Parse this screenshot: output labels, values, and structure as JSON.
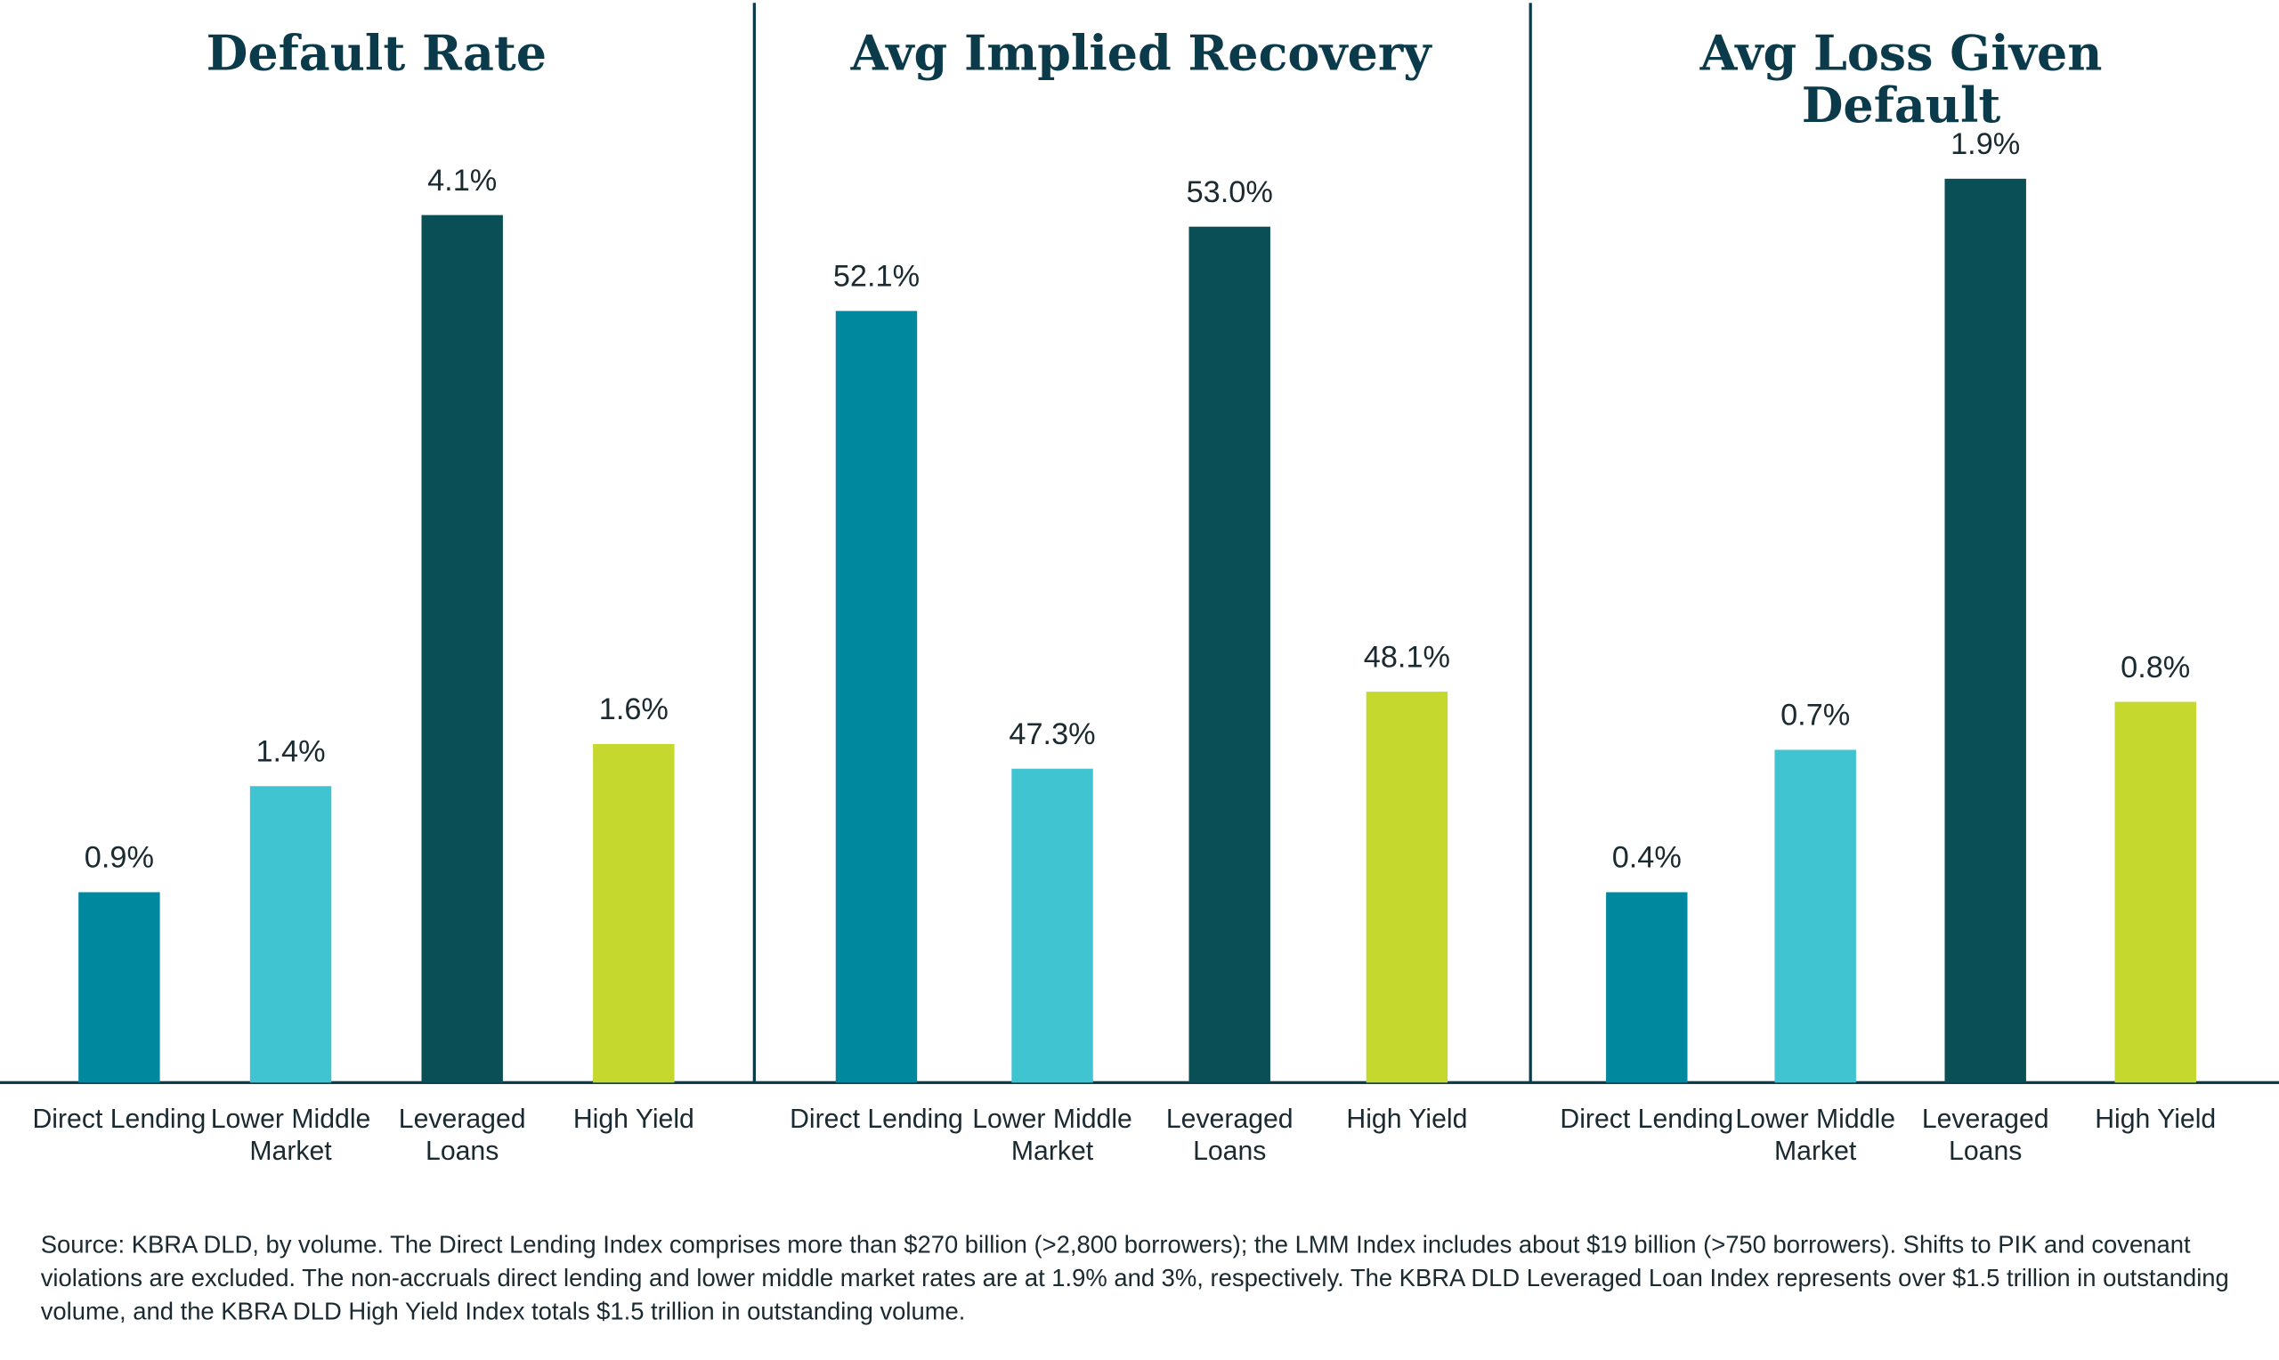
{
  "chart_data": [
    {
      "type": "bar",
      "title": "Default Rate",
      "categories": [
        "Direct Lending",
        "Lower Middle Market",
        "Leveraged Loans",
        "High Yield"
      ],
      "values": [
        0.9,
        1.4,
        4.1,
        1.6
      ],
      "value_labels": [
        "0.9%",
        "1.4%",
        "4.1%",
        "1.6%"
      ],
      "colors": [
        "#00889e",
        "#40c4d2",
        "#0a4f55",
        "#c4d82e"
      ],
      "ylim": [
        0,
        4.5
      ]
    },
    {
      "type": "bar",
      "title": "Avg Implied Recovery",
      "categories": [
        "Direct Lending",
        "Lower Middle Market",
        "Leveraged Loans",
        "High Yield"
      ],
      "values": [
        52.1,
        47.3,
        53.0,
        48.1
      ],
      "value_labels": [
        "52.1%",
        "47.3%",
        "53.0%",
        "48.1%"
      ],
      "colors": [
        "#00889e",
        "#40c4d2",
        "#0a4f55",
        "#c4d82e"
      ],
      "ylim": [
        44,
        54
      ]
    },
    {
      "type": "bar",
      "title": "Avg Loss Given Default",
      "categories": [
        "Direct Lending",
        "Lower Middle Market",
        "Leveraged Loans",
        "High Yield"
      ],
      "values": [
        0.4,
        0.7,
        1.9,
        0.8
      ],
      "value_labels": [
        "0.4%",
        "0.7%",
        "1.9%",
        "0.8%"
      ],
      "colors": [
        "#00889e",
        "#40c4d2",
        "#0a4f55",
        "#c4d82e"
      ],
      "ylim": [
        0,
        2.0
      ]
    }
  ],
  "source": "Source: KBRA DLD, by volume. The Direct Lending Index comprises more than $270 billion (>2,800 borrowers); the LMM Index includes about $19 billion (>750 borrowers). Shifts to PIK and covenant violations are excluded. The non-accruals direct lending and lower middle market rates are at 1.9% and 3%, respectively. The KBRA DLD Leveraged Loan Index represents over $1.5 trillion in outstanding volume, and the KBRA DLD High Yield Index totals $1.5 trillion in outstanding volume."
}
